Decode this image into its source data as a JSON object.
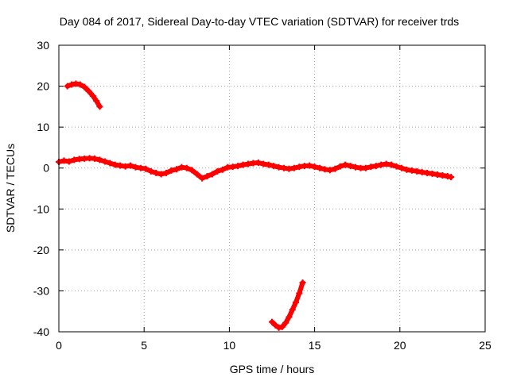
{
  "chart_data": {
    "type": "scatter",
    "title": "Day 084 of 2017, Sidereal Day-to-day VTEC variation (SDTVAR) for receiver trds",
    "xlabel": "GPS time / hours",
    "ylabel": "SDTVAR / TECUs",
    "xlim": [
      0,
      25
    ],
    "ylim": [
      -40,
      30
    ],
    "x_ticks": [
      0,
      5,
      10,
      15,
      20,
      25
    ],
    "x_tick_labels": [
      "0",
      "5",
      "10",
      "15",
      "20",
      "25"
    ],
    "y_ticks": [
      -40,
      -30,
      -20,
      -10,
      0,
      10,
      20,
      30
    ],
    "y_tick_labels": [
      "-40",
      "-30",
      "-20",
      "-10",
      "0",
      "10",
      "20",
      "30"
    ],
    "grid": true,
    "series": [
      {
        "name": "main",
        "color": "#ff0000",
        "points": [
          [
            0.0,
            1.5
          ],
          [
            0.3,
            1.8
          ],
          [
            0.6,
            1.6
          ],
          [
            0.9,
            2.0
          ],
          [
            1.2,
            2.2
          ],
          [
            1.5,
            2.3
          ],
          [
            1.8,
            2.4
          ],
          [
            2.1,
            2.3
          ],
          [
            2.4,
            2.0
          ],
          [
            2.7,
            1.6
          ],
          [
            3.0,
            1.2
          ],
          [
            3.3,
            0.8
          ],
          [
            3.6,
            0.6
          ],
          [
            3.9,
            0.4
          ],
          [
            4.2,
            0.6
          ],
          [
            4.5,
            0.2
          ],
          [
            4.8,
            0.0
          ],
          [
            5.1,
            -0.2
          ],
          [
            5.4,
            -0.8
          ],
          [
            5.7,
            -1.2
          ],
          [
            6.0,
            -1.5
          ],
          [
            6.3,
            -1.2
          ],
          [
            6.6,
            -0.6
          ],
          [
            6.9,
            -0.3
          ],
          [
            7.2,
            0.2
          ],
          [
            7.5,
            0.0
          ],
          [
            7.8,
            -0.5
          ],
          [
            8.1,
            -1.5
          ],
          [
            8.4,
            -2.5
          ],
          [
            8.7,
            -2.0
          ],
          [
            9.0,
            -1.5
          ],
          [
            9.3,
            -0.8
          ],
          [
            9.6,
            -0.4
          ],
          [
            9.9,
            0.2
          ],
          [
            10.2,
            0.3
          ],
          [
            10.5,
            0.5
          ],
          [
            10.8,
            0.8
          ],
          [
            11.1,
            1.0
          ],
          [
            11.4,
            1.2
          ],
          [
            11.7,
            1.3
          ],
          [
            12.0,
            1.0
          ],
          [
            12.3,
            0.8
          ],
          [
            12.6,
            0.5
          ],
          [
            12.9,
            0.2
          ],
          [
            13.2,
            0.0
          ],
          [
            13.5,
            -0.2
          ],
          [
            13.8,
            0.0
          ],
          [
            14.1,
            0.3
          ],
          [
            14.4,
            0.5
          ],
          [
            14.7,
            0.6
          ],
          [
            15.0,
            0.3
          ],
          [
            15.3,
            0.0
          ],
          [
            15.6,
            -0.3
          ],
          [
            15.9,
            -0.5
          ],
          [
            16.2,
            -0.2
          ],
          [
            16.5,
            0.4
          ],
          [
            16.8,
            0.8
          ],
          [
            17.1,
            0.5
          ],
          [
            17.4,
            0.2
          ],
          [
            17.7,
            0.0
          ],
          [
            18.0,
            0.0
          ],
          [
            18.3,
            0.3
          ],
          [
            18.6,
            0.5
          ],
          [
            18.9,
            0.8
          ],
          [
            19.2,
            1.0
          ],
          [
            19.5,
            0.8
          ],
          [
            19.8,
            0.4
          ],
          [
            20.1,
            0.0
          ],
          [
            20.4,
            -0.4
          ],
          [
            20.7,
            -0.6
          ],
          [
            21.0,
            -0.8
          ],
          [
            21.3,
            -1.0
          ],
          [
            21.6,
            -1.2
          ],
          [
            21.9,
            -1.4
          ],
          [
            22.2,
            -1.6
          ],
          [
            22.5,
            -1.8
          ],
          [
            22.8,
            -2.0
          ],
          [
            23.0,
            -2.2
          ]
        ]
      },
      {
        "name": "upper-arc",
        "color": "#ff0000",
        "points": [
          [
            0.5,
            20.0
          ],
          [
            0.75,
            20.4
          ],
          [
            1.0,
            20.6
          ],
          [
            1.25,
            20.4
          ],
          [
            1.5,
            19.8
          ],
          [
            1.75,
            18.8
          ],
          [
            2.0,
            17.6
          ],
          [
            2.2,
            16.4
          ],
          [
            2.4,
            15.0
          ]
        ]
      },
      {
        "name": "lower-arc",
        "color": "#ff0000",
        "points": [
          [
            12.5,
            -37.6
          ],
          [
            12.7,
            -38.4
          ],
          [
            12.9,
            -39.0
          ],
          [
            13.1,
            -38.8
          ],
          [
            13.3,
            -37.8
          ],
          [
            13.5,
            -36.4
          ],
          [
            13.7,
            -34.6
          ],
          [
            13.9,
            -32.8
          ],
          [
            14.1,
            -30.6
          ],
          [
            14.3,
            -28.0
          ]
        ]
      }
    ]
  }
}
